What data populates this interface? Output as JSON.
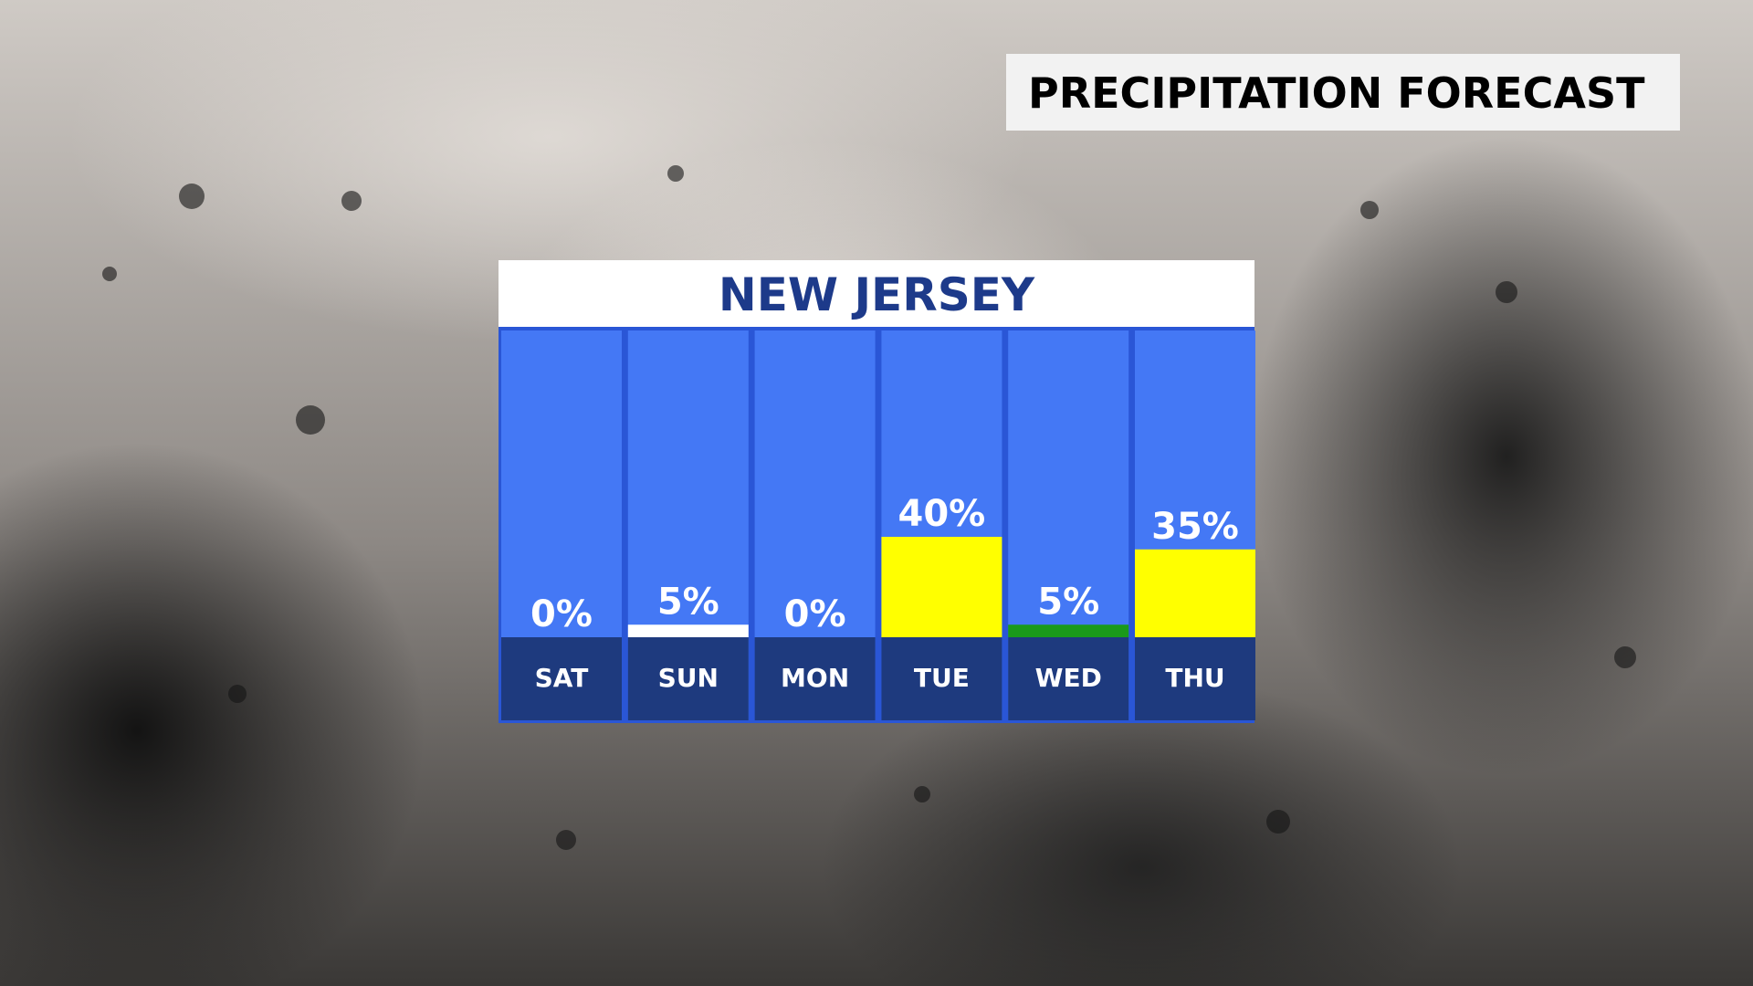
{
  "header": {
    "title": "PRECIPITATION FORECAST"
  },
  "chart_data": {
    "type": "bar",
    "title": "NEW JERSEY",
    "categories": [
      "SAT",
      "SUN",
      "MON",
      "TUE",
      "WED",
      "THU"
    ],
    "values": [
      0,
      5,
      0,
      40,
      5,
      35
    ],
    "value_labels": [
      "0%",
      "5%",
      "0%",
      "40%",
      "5%",
      "35%"
    ],
    "colors": [
      "#ffffff",
      "#ffffff",
      "#ffffff",
      "#ffff00",
      "#1a9a1a",
      "#ffff00"
    ]
  }
}
